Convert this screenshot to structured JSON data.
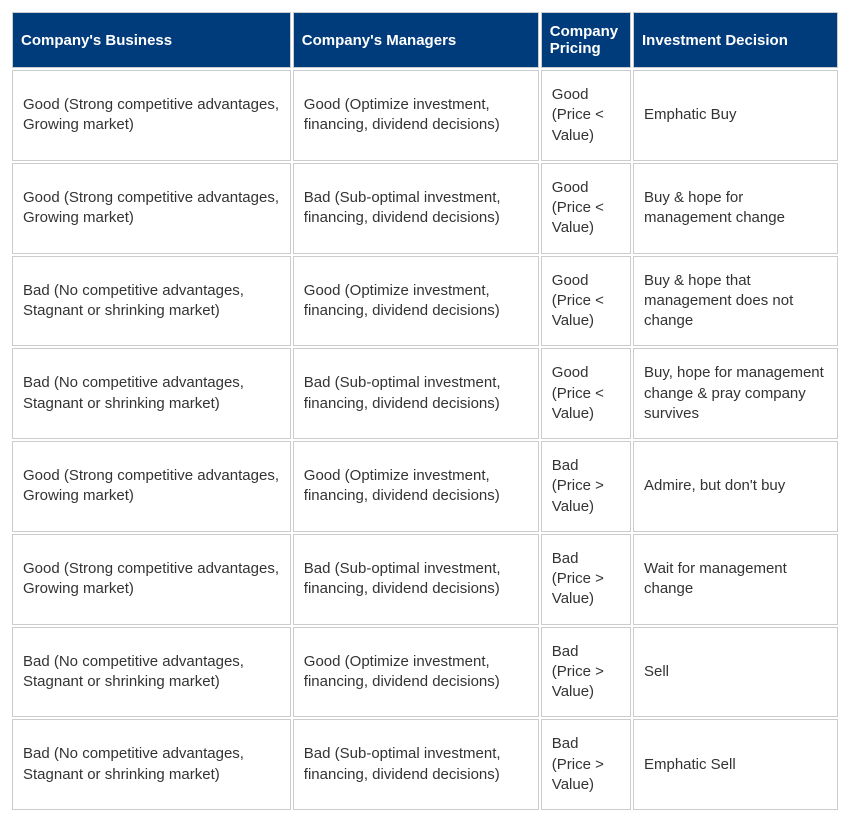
{
  "table": {
    "type": "table",
    "header_bg": "#003b7c",
    "header_text_color": "#ffffff",
    "cell_bg": "#ffffff",
    "cell_text_color": "#333333",
    "border_color": "#cccccc",
    "font_family": "Arial",
    "header_fontsize": 15,
    "cell_fontsize": 15,
    "columns": [
      {
        "key": "business",
        "label": "Company's Business",
        "width_pct": 34
      },
      {
        "key": "managers",
        "label": "Company's Managers",
        "width_pct": 30
      },
      {
        "key": "pricing",
        "label": "Company Pricing",
        "width_pct": 11
      },
      {
        "key": "decision",
        "label": "Investment Decision",
        "width_pct": 25
      }
    ],
    "rows": [
      {
        "business": "Good (Strong competitive advantages, Growing market)",
        "managers": "Good (Optimize investment, financing, dividend decisions)",
        "pricing": "Good (Price < Value)",
        "decision": "Emphatic Buy"
      },
      {
        "business": "Good (Strong competitive advantages, Growing market)",
        "managers": "Bad (Sub-optimal investment, financing, dividend decisions)",
        "pricing": "Good (Price < Value)",
        "decision": "Buy & hope for management change"
      },
      {
        "business": "Bad (No competitive advantages, Stagnant or shrinking market)",
        "managers": "Good (Optimize investment, financing, dividend decisions)",
        "pricing": "Good (Price < Value)",
        "decision": "Buy & hope that management does not change"
      },
      {
        "business": "Bad (No competitive advantages, Stagnant or shrinking market)",
        "managers": "Bad (Sub-optimal investment, financing, dividend decisions)",
        "pricing": "Good (Price < Value)",
        "decision": "Buy, hope for management change & pray company survives"
      },
      {
        "business": "Good (Strong competitive advantages, Growing market)",
        "managers": "Good (Optimize investment, financing, dividend decisions)",
        "pricing": "Bad (Price > Value)",
        "decision": "Admire, but don't buy"
      },
      {
        "business": "Good (Strong competitive advantages, Growing market)",
        "managers": "Bad (Sub-optimal investment, financing, dividend decisions)",
        "pricing": "Bad (Price > Value)",
        "decision": "Wait for management change"
      },
      {
        "business": "Bad (No competitive advantages, Stagnant or shrinking market)",
        "managers": "Good (Optimize investment, financing, dividend decisions)",
        "pricing": "Bad (Price > Value)",
        "decision": "Sell"
      },
      {
        "business": "Bad (No competitive advantages, Stagnant or shrinking market)",
        "managers": "Bad (Sub-optimal investment, financing, dividend decisions)",
        "pricing": "Bad (Price > Value)",
        "decision": "Emphatic Sell"
      }
    ]
  }
}
